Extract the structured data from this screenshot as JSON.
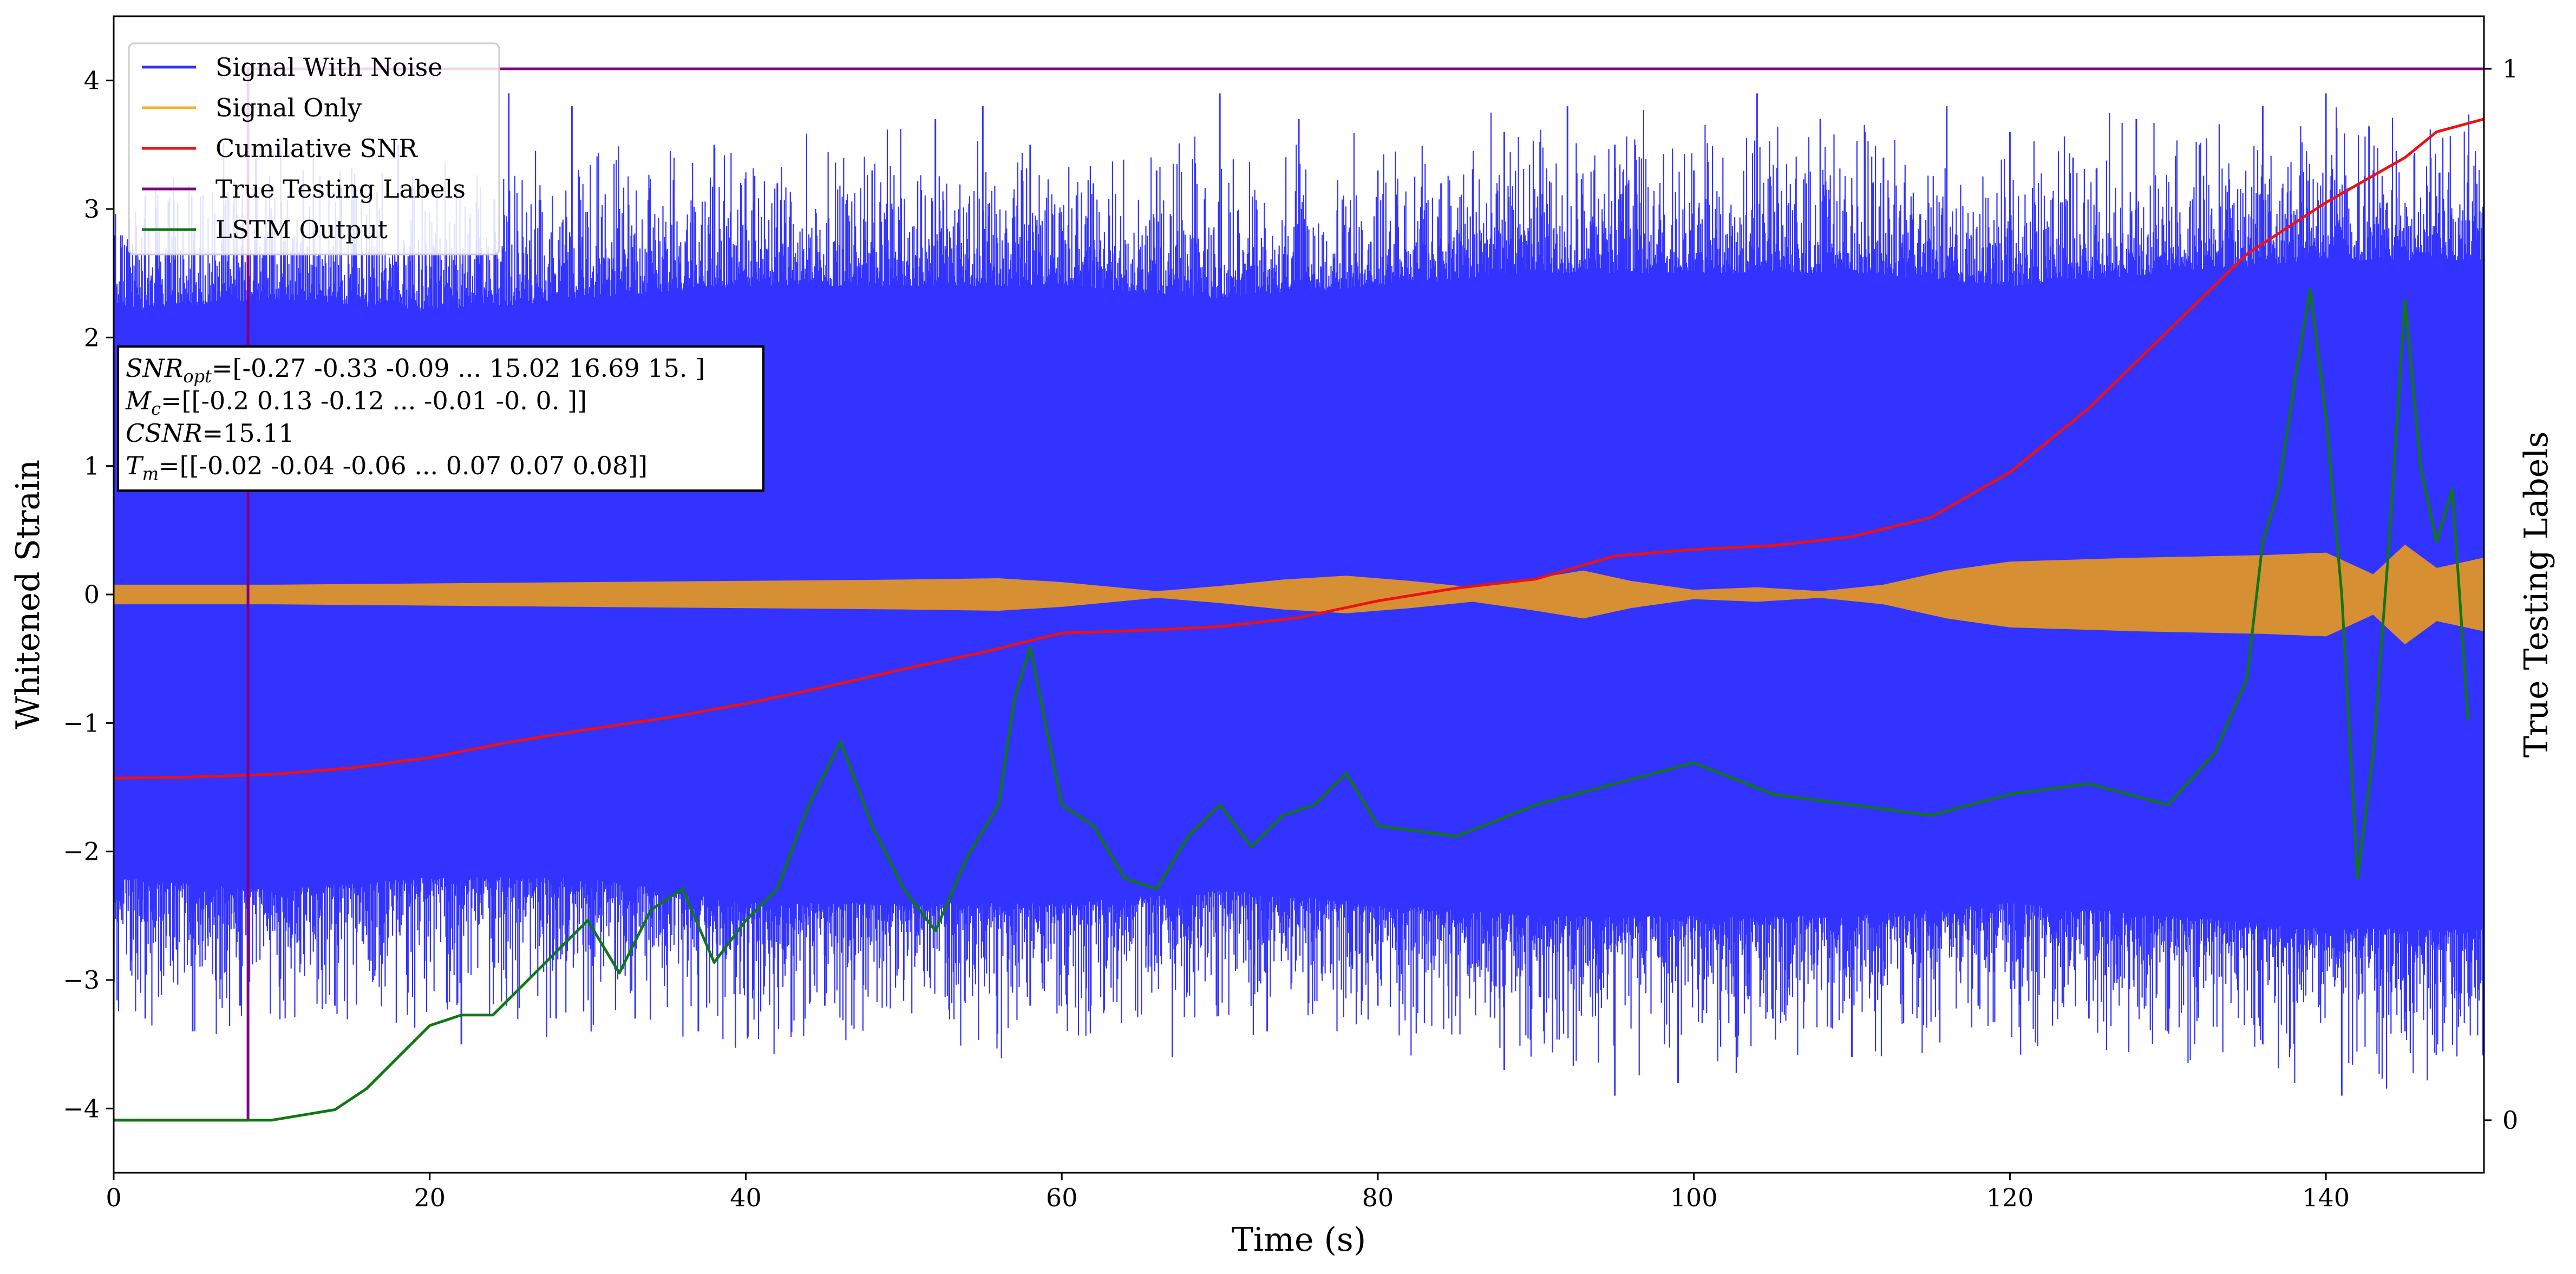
{
  "chart_data": {
    "type": "line",
    "xlabel": "Time (s)",
    "ylabel": "Whitened Strain",
    "y2label": "True Testing Labels",
    "xlim": [
      0,
      150
    ],
    "ylim": [
      -4.5,
      4.5
    ],
    "y2lim": [
      -0.05,
      1.05
    ],
    "x_ticks": [
      0,
      20,
      40,
      60,
      80,
      100,
      120,
      140
    ],
    "y_ticks": [
      -4,
      -3,
      -2,
      -1,
      0,
      1,
      2,
      3,
      4
    ],
    "y2_ticks": [
      0,
      1
    ],
    "grid": false,
    "legend_position": "upper-left",
    "legend": [
      {
        "label": "Signal With Noise",
        "color": "#3333ff"
      },
      {
        "label": "Signal Only",
        "color": "#f2b233"
      },
      {
        "label": "Cumilative SNR",
        "color": "#ee1111"
      },
      {
        "label": "True Testing Labels",
        "color": "#800080"
      },
      {
        "label": "LSTM Output",
        "color": "#117711"
      }
    ],
    "annotation": {
      "lines": [
        {
          "sym": "SNR",
          "sub": "opt",
          "val": "=[-0.27 -0.33 -0.09 ... 15.02 16.69 15.  ]"
        },
        {
          "sym": "M",
          "sub": "c",
          "val": "=[[-0.2   0.13 -0.12 ... -0.01 -0.    0.  ]]"
        },
        {
          "sym": "CSNR",
          "sub": "",
          "val": "=15.11"
        },
        {
          "sym": "T",
          "sub": "m",
          "val": "=[[-0.02 -0.04 -0.06 ...  0.07  0.07  0.08]]"
        }
      ]
    },
    "series": [
      {
        "name": "Signal With Noise",
        "color": "#3333ff",
        "envelope_x": [
          0,
          10,
          20,
          30,
          40,
          50,
          60,
          70,
          80,
          90,
          100,
          110,
          120,
          130,
          140,
          150
        ],
        "envelope_upper": [
          2.2,
          2.3,
          2.2,
          2.3,
          2.4,
          2.4,
          2.4,
          2.3,
          2.4,
          2.5,
          2.5,
          2.5,
          2.4,
          2.5,
          2.6,
          2.6
        ],
        "envelope_lower": [
          -2.2,
          -2.3,
          -2.2,
          -2.2,
          -2.4,
          -2.4,
          -2.4,
          -2.3,
          -2.4,
          -2.5,
          -2.5,
          -2.5,
          -2.4,
          -2.5,
          -2.6,
          -2.6
        ],
        "peak_x": [
          2,
          9,
          12,
          18,
          25,
          29,
          32,
          38,
          42,
          48,
          52,
          55,
          58,
          62,
          66,
          70,
          75,
          80,
          84,
          88,
          92,
          95,
          100,
          104,
          108,
          112,
          116,
          120,
          124,
          128,
          132,
          136,
          140,
          143,
          147
        ],
        "peak_y": [
          3.1,
          3.4,
          3.3,
          3.5,
          3.9,
          3.8,
          3.0,
          3.5,
          3.2,
          3.3,
          3.7,
          3.8,
          3.5,
          3.2,
          3.3,
          3.9,
          3.7,
          3.3,
          3.2,
          3.6,
          3.8,
          3.5,
          3.3,
          3.9,
          3.7,
          3.4,
          3.8,
          3.6,
          3.4,
          3.7,
          3.5,
          3.8,
          3.9,
          3.3,
          3.1
        ],
        "trough_x": [
          2,
          5,
          8,
          14,
          22,
          28,
          33,
          37,
          45,
          50,
          58,
          67,
          73,
          80,
          88,
          95,
          99,
          105,
          110,
          118,
          125,
          130,
          136,
          141,
          145,
          149
        ],
        "trough_y": [
          -3.3,
          -3.4,
          -3.2,
          -3.2,
          -3.5,
          -3.3,
          -3.3,
          -3.4,
          -3.2,
          -3.0,
          -3.2,
          -3.6,
          -3.4,
          -3.2,
          -3.7,
          -3.9,
          -3.8,
          -3.3,
          -3.6,
          -3.2,
          -3.3,
          -3.4,
          -3.5,
          -3.9,
          -3.4,
          -3.1
        ]
      },
      {
        "name": "Signal Only",
        "color": "#f2b233",
        "x": [
          0,
          10,
          20,
          30,
          40,
          50,
          56,
          60,
          66,
          70,
          74,
          78,
          82,
          86,
          90,
          93,
          96,
          100,
          104,
          108,
          112,
          116,
          120,
          128,
          136,
          140,
          143,
          145,
          147,
          150
        ],
        "amplitude": [
          0.07,
          0.07,
          0.08,
          0.09,
          0.1,
          0.11,
          0.12,
          0.09,
          0.02,
          0.06,
          0.11,
          0.14,
          0.1,
          0.05,
          0.12,
          0.18,
          0.1,
          0.03,
          0.05,
          0.02,
          0.07,
          0.18,
          0.25,
          0.28,
          0.3,
          0.32,
          0.15,
          0.38,
          0.2,
          0.28
        ]
      },
      {
        "name": "Cumilative SNR",
        "color": "#ee1111",
        "x": [
          0,
          5,
          10,
          15,
          20,
          25,
          30,
          35,
          40,
          45,
          50,
          55,
          60,
          65,
          70,
          75,
          80,
          85,
          90,
          95,
          100,
          105,
          110,
          115,
          120,
          125,
          130,
          135,
          140,
          145,
          147,
          150
        ],
        "y": [
          -1.43,
          -1.42,
          -1.4,
          -1.35,
          -1.27,
          -1.15,
          -1.05,
          -0.96,
          -0.85,
          -0.72,
          -0.58,
          -0.45,
          -0.3,
          -0.28,
          -0.25,
          -0.18,
          -0.05,
          0.05,
          0.12,
          0.3,
          0.35,
          0.38,
          0.45,
          0.6,
          0.95,
          1.45,
          2.05,
          2.65,
          3.05,
          3.4,
          3.6,
          3.7
        ]
      },
      {
        "name": "True Testing Labels",
        "color": "#800080",
        "x": [
          0,
          8.5,
          8.5,
          150
        ],
        "y": [
          0,
          0,
          1,
          1
        ]
      },
      {
        "name": "LSTM Output",
        "color": "#117711",
        "x": [
          0,
          5,
          10,
          14,
          16,
          18,
          20,
          22,
          24,
          26,
          28,
          30,
          32,
          34,
          36,
          38,
          40,
          42,
          44,
          46,
          48,
          50,
          52,
          54,
          56,
          57,
          58,
          60,
          62,
          64,
          66,
          68,
          70,
          72,
          74,
          76,
          78,
          80,
          85,
          90,
          95,
          100,
          105,
          110,
          115,
          120,
          125,
          130,
          133,
          135,
          136,
          137,
          138,
          139,
          140,
          141,
          142,
          143,
          144,
          145,
          146,
          147,
          148,
          149
        ],
        "y": [
          0.0,
          0.0,
          0.0,
          0.01,
          0.03,
          0.06,
          0.09,
          0.1,
          0.1,
          0.13,
          0.16,
          0.19,
          0.14,
          0.2,
          0.22,
          0.15,
          0.19,
          0.22,
          0.3,
          0.36,
          0.28,
          0.22,
          0.18,
          0.25,
          0.3,
          0.4,
          0.45,
          0.3,
          0.28,
          0.23,
          0.22,
          0.27,
          0.3,
          0.26,
          0.29,
          0.3,
          0.33,
          0.28,
          0.27,
          0.3,
          0.32,
          0.34,
          0.31,
          0.3,
          0.29,
          0.31,
          0.32,
          0.3,
          0.35,
          0.42,
          0.55,
          0.6,
          0.7,
          0.79,
          0.67,
          0.5,
          0.23,
          0.35,
          0.55,
          0.78,
          0.62,
          0.55,
          0.6,
          0.38
        ]
      }
    ]
  }
}
